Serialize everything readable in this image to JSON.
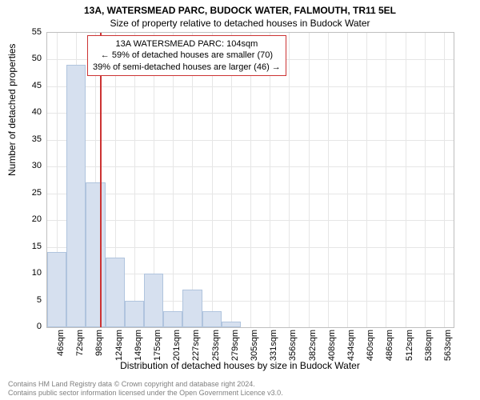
{
  "title_main": "13A, WATERSMEAD PARC, BUDOCK WATER, FALMOUTH, TR11 5EL",
  "title_sub": "Size of property relative to detached houses in Budock Water",
  "ylabel": "Number of detached properties",
  "xlabel": "Distribution of detached houses by size in Budock Water",
  "chart": {
    "type": "histogram",
    "ylim": [
      0,
      55
    ],
    "ytick_step": 5,
    "bin_start": 33,
    "bin_width": 26,
    "categories": [
      "46sqm",
      "72sqm",
      "98sqm",
      "124sqm",
      "149sqm",
      "175sqm",
      "201sqm",
      "227sqm",
      "253sqm",
      "279sqm",
      "305sqm",
      "331sqm",
      "356sqm",
      "382sqm",
      "408sqm",
      "434sqm",
      "460sqm",
      "486sqm",
      "512sqm",
      "538sqm",
      "563sqm"
    ],
    "values": [
      14,
      49,
      27,
      13,
      5,
      10,
      3,
      7,
      3,
      1,
      0,
      0,
      0,
      0,
      0,
      0,
      0,
      0,
      0,
      0,
      0
    ],
    "bar_fill": "#d6e0ef",
    "bar_stroke": "#b0c4de",
    "grid_color": "#e6e6e6",
    "border_color": "#bfbfbf",
    "background": "#ffffff",
    "reference_line": {
      "x_value": 104,
      "color": "#cc3333"
    }
  },
  "annotation": {
    "border_color": "#cc3333",
    "lines": [
      "13A WATERSMEAD PARC: 104sqm",
      "← 59% of detached houses are smaller (70)",
      "39% of semi-detached houses are larger (46) →"
    ]
  },
  "footer": {
    "line1": "Contains HM Land Registry data © Crown copyright and database right 2024.",
    "line2": "Contains public sector information licensed under the Open Government Licence v3.0."
  },
  "font": {
    "axis_label_size": 12,
    "tick_size": 11,
    "anno_size": 11,
    "footer_size": 9
  }
}
